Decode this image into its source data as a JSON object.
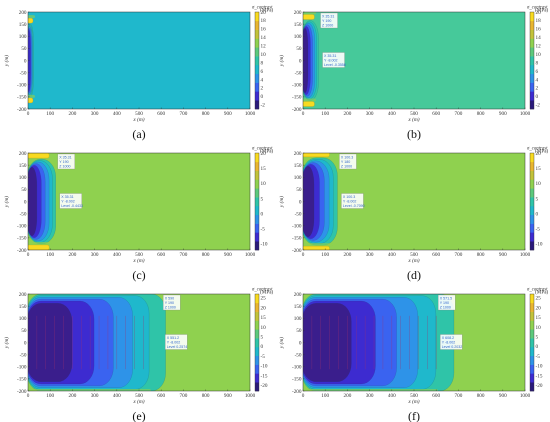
{
  "chart_data": [
    {
      "type": "heatmap",
      "label": "(a)",
      "xlabel": "x (m)",
      "ylabel": "y (m)",
      "xticks": [
        0,
        100,
        200,
        300,
        400,
        500,
        600,
        700,
        800,
        900,
        1000
      ],
      "yticks": [
        -200,
        -150,
        -100,
        -50,
        0,
        50,
        100,
        150,
        200
      ],
      "xlim": [
        0,
        1000
      ],
      "ylim": [
        -200,
        200
      ],
      "colorbar": {
        "title": "σ_contrast",
        "unit": "(MPa)",
        "ticks": [
          20,
          18,
          16,
          14,
          12,
          10,
          8,
          6,
          4,
          2,
          0,
          -2
        ],
        "range": [
          -3,
          20
        ]
      },
      "background_color": "#1fb8cc",
      "zone": {
        "xmax": 25,
        "ymax": 150,
        "core_color": "#3d2bd0"
      },
      "datatip": null
    },
    {
      "type": "heatmap",
      "label": "(b)",
      "xlabel": "x (m)",
      "ylabel": "y (m)",
      "xticks": [
        0,
        100,
        200,
        300,
        400,
        500,
        600,
        700,
        800,
        900,
        1000
      ],
      "yticks": [
        -200,
        -150,
        -100,
        -50,
        0,
        50,
        100,
        150,
        200
      ],
      "xlim": [
        0,
        1000
      ],
      "ylim": [
        -200,
        200
      ],
      "colorbar": {
        "title": "σ_contrast",
        "unit": "(MPa)",
        "ticks": [
          20,
          18,
          16,
          14,
          12,
          10,
          8,
          6,
          4,
          2,
          0,
          -2
        ],
        "range": [
          -3,
          20
        ]
      },
      "background_color": "#46c99a",
      "zone": {
        "xmax": 70,
        "ymax": 165,
        "core_color": "#3a1e8c"
      },
      "datatip": {
        "X": "X 35.31",
        "Y": "Y 190",
        "Z": "Z 1000",
        "X2": "X 35.31",
        "Y2": "Y -8.002",
        "level": "Level -0.3558"
      }
    },
    {
      "type": "heatmap",
      "label": "(c)",
      "xlabel": "x (m)",
      "ylabel": "y (m)",
      "xticks": [
        0,
        100,
        200,
        300,
        400,
        500,
        600,
        700,
        800,
        900,
        1000
      ],
      "yticks": [
        -200,
        -150,
        -100,
        -50,
        0,
        50,
        100,
        150,
        200
      ],
      "xlim": [
        0,
        1000
      ],
      "ylim": [
        -200,
        200
      ],
      "colorbar": {
        "title": "σ_contrast",
        "unit": "(MPa)",
        "ticks": [
          20,
          15,
          10,
          5,
          0,
          -5,
          -10
        ],
        "range": [
          -12,
          20
        ]
      },
      "background_color": "#8fd14f",
      "zone": {
        "xmax": 125,
        "ymax": 175,
        "core_color": "#3a1e8c"
      },
      "datatip": {
        "X": "X 35.31",
        "Y": "Y 190",
        "Z": "Z 1000",
        "X2": "X 35.31",
        "Y2": "Y -8.002",
        "level": "Level -0.4433"
      }
    },
    {
      "type": "heatmap",
      "label": "(d)",
      "xlabel": "x (m)",
      "ylabel": "y (m)",
      "xticks": [
        0,
        100,
        200,
        300,
        400,
        500,
        600,
        700,
        800,
        900,
        1000
      ],
      "yticks": [
        -200,
        -150,
        -100,
        -50,
        0,
        50,
        100,
        150,
        200
      ],
      "xlim": [
        0,
        1000
      ],
      "ylim": [
        -200,
        200
      ],
      "colorbar": {
        "title": "σ_contrast",
        "unit": "(MPa)",
        "ticks": [
          20,
          15,
          10,
          5,
          0,
          -5,
          -10
        ],
        "range": [
          -12,
          20
        ]
      },
      "background_color": "#8fd14f",
      "zone": {
        "xmax": 155,
        "ymax": 180,
        "core_color": "#3a1e8c"
      },
      "datatip": {
        "X": "X 100.3",
        "Y": "Y 180",
        "Z": "Z 1000",
        "X2": "X 100.3",
        "Y2": "Y -8.002",
        "level": "Level -0.7090"
      }
    },
    {
      "type": "heatmap",
      "label": "(e)",
      "xlabel": "x (m)",
      "ylabel": "y (m)",
      "xticks": [
        0,
        100,
        200,
        300,
        400,
        500,
        600,
        700,
        800,
        900,
        1000
      ],
      "yticks": [
        -200,
        -150,
        -100,
        -50,
        0,
        50,
        100,
        150,
        200
      ],
      "xlim": [
        0,
        1000
      ],
      "ylim": [
        -200,
        200
      ],
      "colorbar": {
        "title": "σ_contrast",
        "unit": "(MPa)",
        "ticks": [
          25,
          20,
          15,
          10,
          5,
          0,
          -5,
          -10,
          -15,
          -20
        ],
        "range": [
          -23,
          27
        ]
      },
      "background_color": "#8fd14f",
      "zone": {
        "xmax": 620,
        "ymax": 200,
        "core_color": "#3a1e8c"
      },
      "datatip": {
        "X": "X 590",
        "Y": "Y 190",
        "Z": "Z 1000",
        "X2": "X 551.2",
        "Y2": "Y -8.002",
        "level": "Level 0.2574"
      }
    },
    {
      "type": "heatmap",
      "label": "(f)",
      "xlabel": "x (m)",
      "ylabel": "y (m)",
      "xticks": [
        0,
        100,
        200,
        300,
        400,
        500,
        600,
        700,
        800,
        900,
        1000
      ],
      "yticks": [
        -200,
        -150,
        -100,
        -50,
        0,
        50,
        100,
        150,
        200
      ],
      "xlim": [
        0,
        1000
      ],
      "ylim": [
        -200,
        200
      ],
      "colorbar": {
        "title": "σ_contrast",
        "unit": "(MPa)",
        "ticks": [
          25,
          20,
          15,
          10,
          5,
          0,
          -5,
          -10,
          -15,
          -20
        ],
        "range": [
          -23,
          27
        ]
      },
      "background_color": "#8fd14f",
      "zone": {
        "xmax": 680,
        "ymax": 200,
        "core_color": "#3a1e8c"
      },
      "datatip": {
        "X": "X 571.5",
        "Y": "Y 190",
        "Z": "Z 1000",
        "X2": "X 608.2",
        "Y2": "Y -8.002",
        "level": "Level 0.2032"
      }
    }
  ]
}
